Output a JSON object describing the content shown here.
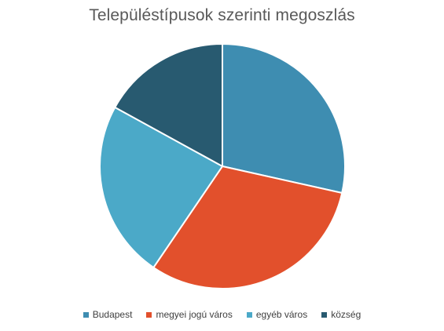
{
  "chart_data": {
    "type": "pie",
    "title": "Településtípusok szerinti megoszlás",
    "categories": [
      "Budapest",
      "megyei jogú város",
      "egyéb város",
      "község"
    ],
    "values": [
      28.5,
      31.0,
      23.5,
      17.0
    ],
    "colors": [
      "#3E8DB1",
      "#E2502C",
      "#4BA9C8",
      "#285A70"
    ],
    "legend_position": "bottom",
    "start_angle_deg": 0,
    "direction": "clockwise"
  }
}
